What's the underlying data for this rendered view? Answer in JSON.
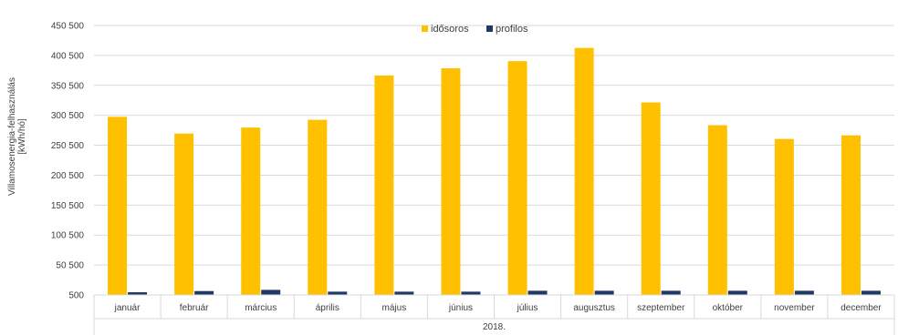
{
  "chart_data": {
    "type": "bar",
    "ylabel_lines": [
      "Villamosenergia-felhasználás",
      "[kWh/hó]"
    ],
    "xgroup_label": "2018.",
    "categories": [
      "január",
      "február",
      "március",
      "április",
      "május",
      "június",
      "július",
      "augusztus",
      "szeptember",
      "október",
      "november",
      "december"
    ],
    "series": [
      {
        "name": "idősoros",
        "color": "#FFC000",
        "values": [
          298000,
          270000,
          280000,
          293000,
          367000,
          379000,
          391000,
          413000,
          322000,
          284000,
          261000,
          267000
        ]
      },
      {
        "name": "profilos",
        "color": "#203864",
        "values": [
          5000,
          7000,
          9000,
          6000,
          6000,
          6000,
          7500,
          7500,
          7500,
          7500,
          7500,
          7500
        ]
      }
    ],
    "yticks": [
      500,
      50500,
      100500,
      150500,
      200500,
      250500,
      300500,
      350500,
      400500,
      450500
    ],
    "ytick_labels": [
      "500",
      "50 500",
      "100 500",
      "150 500",
      "200 500",
      "250 500",
      "300 500",
      "350 500",
      "400 500",
      "450 500"
    ],
    "ylim": [
      500,
      450500
    ],
    "grid": true,
    "legend_position": "top-center"
  }
}
